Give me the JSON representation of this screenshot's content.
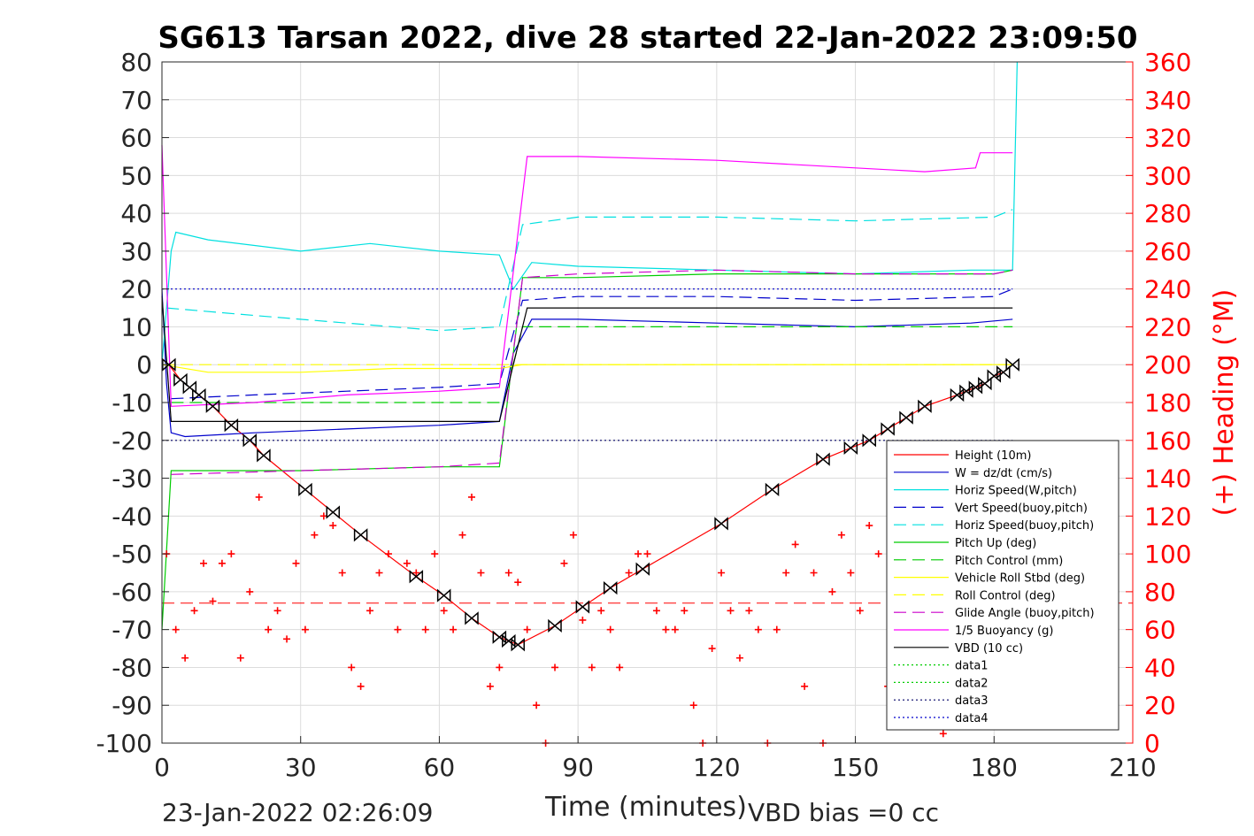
{
  "chart_data": {
    "type": "line",
    "title": "SG613 Tarsan 2022, dive 28 started 22-Jan-2022 23:09:50",
    "xlabel": "Time (minutes)",
    "ylabel_right": "(+) Heading (°M)",
    "footer_left": "23-Jan-2022 02:26:09",
    "footer_right": "VBD bias =0 cc",
    "xlim": [
      0,
      210
    ],
    "ylim_left": [
      -100,
      80
    ],
    "ylim_right": [
      0,
      360
    ],
    "xticks": [
      "0",
      "30",
      "60",
      "90",
      "120",
      "150",
      "180",
      "210"
    ],
    "yticks_left": [
      "80",
      "70",
      "60",
      "50",
      "40",
      "30",
      "20",
      "10",
      "0",
      "-10",
      "-20",
      "-30",
      "-40",
      "-50",
      "-60",
      "-70",
      "-80",
      "-90",
      "-100"
    ],
    "yticks_right": [
      "360",
      "340",
      "320",
      "300",
      "280",
      "260",
      "240",
      "220",
      "200",
      "180",
      "160",
      "140",
      "120",
      "100",
      "80",
      "60",
      "40",
      "20",
      "0"
    ],
    "grid": true,
    "legend_position": "bottom-right",
    "right_axis_color": "#ff0000",
    "series": [
      {
        "name": "Height (10m)",
        "color": "#ff0000",
        "style": "solid",
        "marker": "bowtie",
        "x": [
          1.5,
          4,
          6,
          8,
          11,
          15,
          19,
          22,
          31,
          37,
          43,
          55,
          61,
          67,
          73,
          75,
          77,
          85,
          91,
          97,
          104,
          121,
          132,
          143,
          149,
          153,
          157,
          161,
          165,
          172,
          174,
          176,
          178,
          180,
          182,
          184
        ],
        "values": [
          0,
          -4,
          -6,
          -8,
          -11,
          -16,
          -20,
          -24,
          -33,
          -39,
          -45,
          -56,
          -61,
          -67,
          -72,
          -73,
          -74,
          -69,
          -64,
          -59,
          -54,
          -42,
          -33,
          -25,
          -22,
          -20,
          -17,
          -14,
          -11,
          -8,
          -7,
          -6,
          -5,
          -3,
          -2,
          0
        ]
      },
      {
        "name": "W = dz/dt (cm/s)",
        "color": "#0000cc",
        "style": "solid",
        "x": [
          0,
          1,
          2,
          5,
          20,
          40,
          60,
          73,
          76,
          80,
          90,
          120,
          150,
          175,
          184
        ],
        "values": [
          20,
          -5,
          -18,
          -19,
          -18,
          -17,
          -16,
          -15,
          3,
          12,
          12,
          11,
          10,
          11,
          12
        ]
      },
      {
        "name": "Horiz Speed(W,pitch)",
        "color": "#00e0e0",
        "style": "solid",
        "x": [
          0,
          2,
          3,
          10,
          30,
          45,
          60,
          73,
          76,
          80,
          90,
          120,
          150,
          175,
          184,
          185
        ],
        "values": [
          0,
          30,
          35,
          33,
          30,
          32,
          30,
          29,
          20,
          27,
          26,
          25,
          24,
          25,
          25,
          80
        ]
      },
      {
        "name": "Vert Speed(buoy,pitch)",
        "color": "#0000cc",
        "style": "dash",
        "x": [
          2,
          20,
          40,
          60,
          73,
          78,
          90,
          120,
          150,
          180,
          184
        ],
        "values": [
          -9,
          -8,
          -7,
          -6,
          -5,
          17,
          18,
          18,
          17,
          18,
          20
        ]
      },
      {
        "name": "Horiz Speed(buoy,pitch)",
        "color": "#00e0e0",
        "style": "dash",
        "x": [
          1,
          20,
          40,
          60,
          73,
          78,
          90,
          120,
          150,
          180,
          184
        ],
        "values": [
          15,
          13,
          11,
          9,
          10,
          37,
          39,
          39,
          38,
          39,
          41
        ]
      },
      {
        "name": "Pitch Up (deg)",
        "color": "#00cc00",
        "style": "solid",
        "x": [
          0,
          2,
          30,
          60,
          73,
          78,
          90,
          120,
          150,
          180,
          184
        ],
        "values": [
          -70,
          -28,
          -28,
          -27,
          -27,
          23,
          23,
          24,
          24,
          24,
          25
        ]
      },
      {
        "name": "Pitch Control (mm)",
        "color": "#00cc00",
        "style": "dash",
        "x": [
          2,
          74,
          78,
          184
        ],
        "values": [
          -10,
          -10,
          10,
          10
        ]
      },
      {
        "name": "Vehicle Roll Stbd (deg)",
        "color": "#ffff00",
        "style": "solid",
        "x": [
          0,
          10,
          30,
          50,
          73,
          78,
          100,
          130,
          160,
          184
        ],
        "values": [
          0,
          -2,
          -2,
          -1,
          -1,
          0,
          0,
          0,
          0,
          0
        ]
      },
      {
        "name": "Roll Control (deg)",
        "color": "#ffff00",
        "style": "dash",
        "x": [
          0,
          60,
          120,
          184
        ],
        "values": [
          0,
          0,
          0,
          0
        ]
      },
      {
        "name": "Glide Angle (buoy,pitch)",
        "color": "#cc00cc",
        "style": "dash",
        "x": [
          2,
          30,
          60,
          73,
          78,
          90,
          120,
          150,
          180,
          184
        ],
        "values": [
          -29,
          -28,
          -27,
          -26,
          23,
          24,
          25,
          24,
          24,
          25
        ]
      },
      {
        "name": "1/5 Buoyancy (g)",
        "color": "#ff00ff",
        "style": "solid",
        "x": [
          0,
          2,
          20,
          40,
          60,
          73,
          79,
          90,
          120,
          150,
          165,
          176,
          177,
          184
        ],
        "values": [
          58,
          -11,
          -10,
          -8,
          -7,
          -6,
          55,
          55,
          54,
          52,
          51,
          52,
          56,
          56
        ]
      },
      {
        "name": "VBD (10 cc)",
        "color": "#000000",
        "style": "solid",
        "x": [
          0,
          2,
          73,
          79,
          184
        ],
        "values": [
          18,
          -15,
          -15,
          15,
          15
        ]
      },
      {
        "name": "data1",
        "color": "#00cc00",
        "style": "dot",
        "x": [],
        "values": []
      },
      {
        "name": "data2",
        "color": "#00cc00",
        "style": "dot",
        "x": [],
        "values": []
      },
      {
        "name": "data3",
        "color": "#000066",
        "style": "dot",
        "x": [
          0,
          184
        ],
        "values": [
          -20,
          -20
        ]
      },
      {
        "name": "data4",
        "color": "#0000cc",
        "style": "dot",
        "x": [
          0,
          184
        ],
        "values": [
          20,
          20
        ]
      }
    ],
    "heading": {
      "axis": "right",
      "color": "#ff0000",
      "marker": "+",
      "reference_line": 74,
      "x": [
        1,
        3,
        5,
        7,
        9,
        11,
        13,
        15,
        17,
        19,
        21,
        23,
        25,
        27,
        29,
        31,
        33,
        35,
        37,
        39,
        41,
        43,
        45,
        47,
        49,
        51,
        53,
        55,
        57,
        59,
        61,
        63,
        65,
        67,
        69,
        71,
        73,
        75,
        77,
        79,
        81,
        83,
        85,
        87,
        89,
        91,
        93,
        95,
        97,
        99,
        101,
        103,
        105,
        107,
        109,
        111,
        113,
        115,
        117,
        119,
        121,
        123,
        125,
        127,
        129,
        131,
        133,
        135,
        137,
        139,
        141,
        143,
        145,
        147,
        149,
        151,
        153,
        155,
        157,
        159,
        161,
        163,
        165,
        167,
        169,
        171,
        173,
        175,
        177,
        179
      ],
      "values": [
        100,
        60,
        45,
        70,
        95,
        75,
        95,
        100,
        45,
        80,
        130,
        60,
        70,
        55,
        95,
        60,
        110,
        120,
        115,
        90,
        40,
        30,
        70,
        90,
        100,
        60,
        95,
        90,
        60,
        100,
        70,
        60,
        110,
        130,
        90,
        30,
        40,
        90,
        85,
        60,
        20,
        0,
        40,
        95,
        110,
        65,
        40,
        70,
        60,
        40,
        90,
        100,
        100,
        70,
        60,
        60,
        70,
        20,
        0,
        50,
        90,
        70,
        45,
        70,
        60,
        0,
        60,
        90,
        105,
        30,
        90,
        0,
        80,
        110,
        90,
        70,
        115,
        100,
        30,
        20,
        85,
        90,
        40,
        20,
        5,
        100,
        85,
        60,
        55,
        40
      ]
    }
  }
}
